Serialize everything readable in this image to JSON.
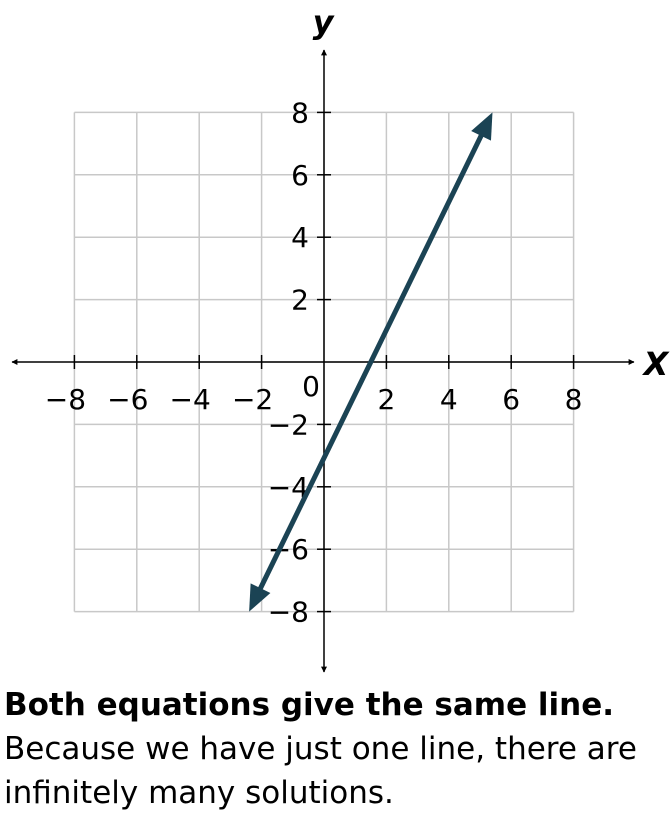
{
  "chart_data": {
    "type": "line",
    "axis_labels": {
      "x": "X",
      "y": "y"
    },
    "xlim": [
      -8,
      8
    ],
    "ylim": [
      -8,
      8
    ],
    "x_ticks": [
      {
        "value": -8,
        "label": "−8"
      },
      {
        "value": -6,
        "label": "−6"
      },
      {
        "value": -4,
        "label": "−4"
      },
      {
        "value": -2,
        "label": "−2"
      },
      {
        "value": 2,
        "label": "2"
      },
      {
        "value": 4,
        "label": "4"
      },
      {
        "value": 6,
        "label": "6"
      },
      {
        "value": 8,
        "label": "8"
      }
    ],
    "y_ticks": [
      {
        "value": 8,
        "label": "8"
      },
      {
        "value": 6,
        "label": "6"
      },
      {
        "value": 4,
        "label": "4"
      },
      {
        "value": 2,
        "label": "2"
      },
      {
        "value": -2,
        "label": "−2"
      },
      {
        "value": -4,
        "label": "−4"
      },
      {
        "value": -6,
        "label": "−6"
      },
      {
        "value": -8,
        "label": "−8"
      }
    ],
    "origin_label": "0",
    "grid": true,
    "series": [
      {
        "points": [
          [
            -2.4,
            -8
          ],
          [
            5.4,
            8
          ]
        ],
        "color": "#1b4354",
        "arrows": "both"
      }
    ]
  },
  "caption": {
    "bold": "Both equations give the same line.",
    "text": "Because we have just one line, there are infinitely many solutions."
  }
}
